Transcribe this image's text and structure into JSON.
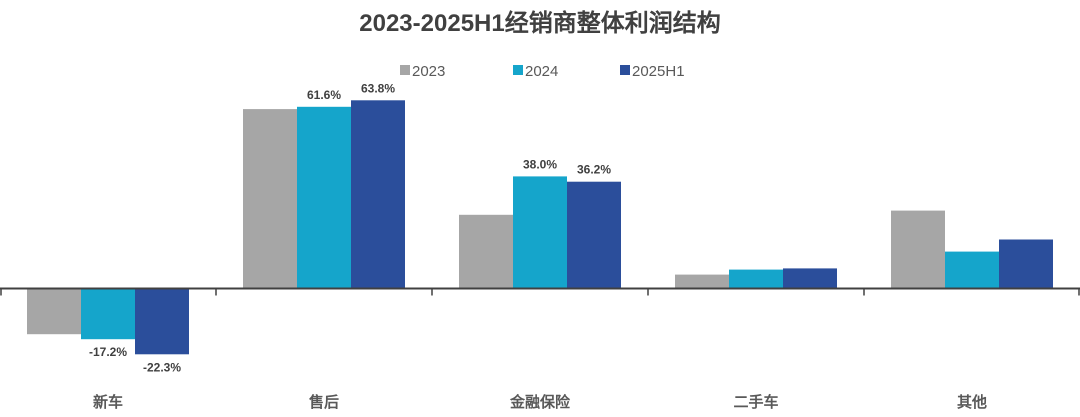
{
  "chart_data": {
    "type": "bar",
    "title": "2023-2025H1经销商整体利润结构",
    "categories": [
      "新车",
      "售后",
      "金融保险",
      "二手车",
      "其他"
    ],
    "series": [
      {
        "name": "2023",
        "color": "#A6A6A6",
        "values": [
          -15.5,
          60.8,
          25.0,
          4.7,
          26.4
        ],
        "labels": [
          "",
          "",
          "",
          "",
          ""
        ]
      },
      {
        "name": "2024",
        "color": "#15A5CB",
        "values": [
          -17.2,
          61.6,
          38.0,
          6.4,
          12.5
        ],
        "labels": [
          "-17.2%",
          "61.6%",
          "38.0%",
          "",
          ""
        ]
      },
      {
        "name": "2025H1",
        "color": "#2B4E9B",
        "values": [
          -22.3,
          63.8,
          36.2,
          6.8,
          16.6
        ],
        "labels": [
          "-22.3%",
          "63.8%",
          "36.2%",
          "",
          ""
        ]
      }
    ],
    "ylim": [
      -30,
      70
    ],
    "grid": false,
    "legend_position": "top"
  }
}
